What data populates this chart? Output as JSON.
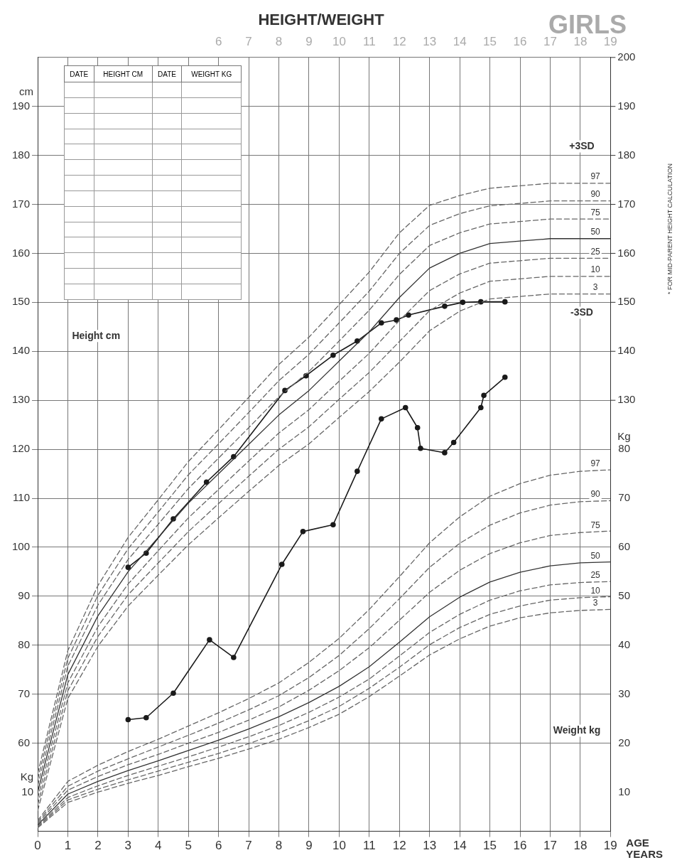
{
  "chart_data": {
    "type": "line",
    "title": "HEIGHT/WEIGHT",
    "subtitle": "GIRLS",
    "xlabel": "AGE YEARS",
    "ylabel": "cm",
    "y2label": "Kg",
    "annotations": [
      "DATE",
      "HEIGHT CM",
      "DATE",
      "WEIGHT KG",
      "Height cm",
      "Weight kg",
      "* FOR MID-PARENT HEIGHT CALCULATION",
      "+3SD",
      "-3SD",
      "Kg"
    ],
    "x": [
      0,
      1,
      2,
      3,
      4,
      5,
      6,
      7,
      8,
      9,
      10,
      11,
      12,
      13,
      14,
      15,
      16,
      17,
      18,
      19
    ],
    "xlim": [
      0,
      19
    ],
    "xticks": [
      0,
      1,
      2,
      3,
      4,
      5,
      6,
      7,
      8,
      9,
      10,
      11,
      12,
      13,
      14,
      15,
      16,
      17,
      18,
      19
    ],
    "x2lim": [
      0,
      19
    ],
    "x2ticks": [
      6,
      7,
      8,
      9,
      10,
      11,
      12,
      13,
      14,
      15,
      16,
      17,
      18,
      19
    ],
    "ylim": [
      42,
      200
    ],
    "yticks": [
      60,
      70,
      80,
      90,
      100,
      110,
      120,
      130,
      140,
      150,
      160,
      170,
      180,
      190
    ],
    "y2lim": [
      2,
      160
    ],
    "y2ticks": [
      10,
      20,
      30,
      40,
      50,
      60,
      70,
      80
    ],
    "y3lim": [
      42,
      200
    ],
    "y3ticks": [
      130,
      140,
      150,
      160,
      170,
      180,
      190,
      200
    ],
    "grid": true,
    "series": [
      {
        "name": "97",
        "color": "#666666",
        "line_style": "dashed",
        "marker": "none",
        "values": [
          53.8,
          78.9,
          92.2,
          102.0,
          109.7,
          117.5,
          124.0,
          130.6,
          137.3,
          142.9,
          149.5,
          156.2,
          164.2,
          169.8,
          171.8,
          173.3,
          173.8,
          174.3,
          174.3,
          174.3
        ]
      },
      {
        "name": "90",
        "color": "#666666",
        "line_style": "dashed",
        "marker": "none",
        "values": [
          52.6,
          77.3,
          90.2,
          99.7,
          107.2,
          114.8,
          121.1,
          127.5,
          134.0,
          139.4,
          145.8,
          152.3,
          160.0,
          165.7,
          168.1,
          169.7,
          170.2,
          170.7,
          170.7,
          170.7
        ]
      },
      {
        "name": "75",
        "color": "#666666",
        "line_style": "dashed",
        "marker": "none",
        "values": [
          51.3,
          75.7,
          88.2,
          97.5,
          104.7,
          112.0,
          118.2,
          124.4,
          130.7,
          135.9,
          142.1,
          148.4,
          155.7,
          161.6,
          164.2,
          166.0,
          166.5,
          167.0,
          167.0,
          167.0
        ]
      },
      {
        "name": "50",
        "color": "#333333",
        "line_style": "solid",
        "marker": "none",
        "values": [
          50,
          74,
          86,
          95,
          102,
          109,
          115,
          121,
          127,
          132,
          138,
          144,
          151,
          157,
          160,
          162,
          162.5,
          163,
          163,
          163
        ]
      },
      {
        "name": "25",
        "color": "#666666",
        "line_style": "dashed",
        "marker": "none",
        "values": [
          48.7,
          72.3,
          83.8,
          92.5,
          99.3,
          106.0,
          111.8,
          117.6,
          123.3,
          128.1,
          133.9,
          139.6,
          146.3,
          152.4,
          155.8,
          158.0,
          158.5,
          159.0,
          159.0,
          159.0
        ]
      },
      {
        "name": "10",
        "color": "#666666",
        "line_style": "dashed",
        "marker": "none",
        "values": [
          47.4,
          70.7,
          81.8,
          90.3,
          96.8,
          103.2,
          108.9,
          114.5,
          120.0,
          124.6,
          130.2,
          135.7,
          142.0,
          148.3,
          151.9,
          154.3,
          154.8,
          155.3,
          155.3,
          155.3
        ]
      },
      {
        "name": "3",
        "color": "#666666",
        "line_style": "dashed",
        "marker": "none",
        "values": [
          46.2,
          69.1,
          79.8,
          88.0,
          94.3,
          100.5,
          106.0,
          111.4,
          116.7,
          121.1,
          126.5,
          131.8,
          137.8,
          144.2,
          148.2,
          150.7,
          151.2,
          151.7,
          151.7,
          151.7
        ]
      },
      {
        "name": "97",
        "axis": "y2",
        "color": "#666666",
        "line_style": "dashed",
        "marker": "none",
        "values": [
          4.2,
          12.2,
          15.5,
          18.3,
          20.8,
          23.5,
          26.2,
          29.1,
          32.3,
          36.5,
          41.4,
          47.3,
          54.0,
          60.9,
          66.2,
          70.4,
          73.0,
          74.7,
          75.5,
          75.8
        ]
      },
      {
        "name": "90",
        "axis": "y2",
        "color": "#666666",
        "line_style": "dashed",
        "marker": "none",
        "values": [
          3.9,
          11.2,
          14.3,
          16.8,
          19.2,
          21.6,
          24.1,
          26.8,
          29.7,
          33.4,
          37.9,
          43.4,
          49.5,
          55.9,
          60.8,
          64.5,
          67.0,
          68.6,
          69.3,
          69.5
        ]
      },
      {
        "name": "75",
        "axis": "y2",
        "color": "#666666",
        "line_style": "dashed",
        "marker": "none",
        "values": [
          3.6,
          10.4,
          13.2,
          15.6,
          17.7,
          20.0,
          22.2,
          24.7,
          27.4,
          30.8,
          34.8,
          39.5,
          45.1,
          50.8,
          55.3,
          58.7,
          60.9,
          62.4,
          63.0,
          63.3
        ]
      },
      {
        "name": "50",
        "axis": "y2",
        "color": "#333333",
        "line_style": "solid",
        "marker": "none",
        "values": [
          3.3,
          9.6,
          12.2,
          14.4,
          16.4,
          18.5,
          20.6,
          22.9,
          25.4,
          28.3,
          31.6,
          35.6,
          40.6,
          45.8,
          49.8,
          52.9,
          54.9,
          56.2,
          56.8,
          57
        ]
      },
      {
        "name": "25",
        "axis": "y2",
        "color": "#666666",
        "line_style": "dashed",
        "marker": "none",
        "values": [
          3.1,
          8.9,
          11.3,
          13.4,
          15.3,
          17.2,
          19.2,
          21.3,
          23.6,
          26.3,
          29.4,
          33.1,
          37.8,
          42.6,
          46.3,
          49.2,
          51.1,
          52.3,
          52.8,
          53.0
        ]
      },
      {
        "name": "10",
        "axis": "y2",
        "color": "#666666",
        "line_style": "dashed",
        "marker": "none",
        "values": [
          2.9,
          8.4,
          10.6,
          12.5,
          14.3,
          16.1,
          17.9,
          19.9,
          22.1,
          24.6,
          27.5,
          31.2,
          35.5,
          40.1,
          43.6,
          46.3,
          48.0,
          49.2,
          49.7,
          49.9
        ]
      },
      {
        "name": "3",
        "axis": "y2",
        "color": "#666666",
        "line_style": "dashed",
        "marker": "none",
        "values": [
          2.7,
          7.9,
          10.0,
          11.8,
          13.4,
          15.2,
          16.9,
          18.8,
          20.8,
          23.2,
          25.9,
          29.5,
          33.7,
          38.0,
          41.3,
          43.9,
          45.6,
          46.6,
          47.1,
          47.3
        ]
      },
      {
        "color": "#1a1a1a",
        "line_style": "solid",
        "marker": "circle",
        "x": [
          3.0,
          3.6,
          4.5,
          5.6,
          6.5,
          8.2,
          8.9,
          9.8,
          10.6,
          11.4,
          11.9,
          12.3,
          13.5,
          14.1,
          14.7,
          15.5
        ],
        "values": [
          95.9,
          98.8,
          105.8,
          113.3,
          118.5,
          132.0,
          135.0,
          139.2,
          142.1,
          145.8,
          146.4,
          147.4,
          149.2,
          150.0,
          150.1,
          150.1
        ]
      },
      {
        "axis": "y2",
        "color": "#1a1a1a",
        "line_style": "solid",
        "marker": "circle",
        "x": [
          3.0,
          3.6,
          4.5,
          5.7,
          6.5,
          8.1,
          8.8,
          9.8,
          10.6,
          11.4,
          12.2,
          12.6,
          12.7,
          13.5,
          13.8,
          14.7,
          14.8,
          15.5
        ],
        "values": [
          24.8,
          25.2,
          30.2,
          41.1,
          37.5,
          56.5,
          63.2,
          64.6,
          75.5,
          86.2,
          88.5,
          84.4,
          80.2,
          79.3,
          81.4,
          88.5,
          91.0,
          94.7
        ]
      }
    ]
  }
}
